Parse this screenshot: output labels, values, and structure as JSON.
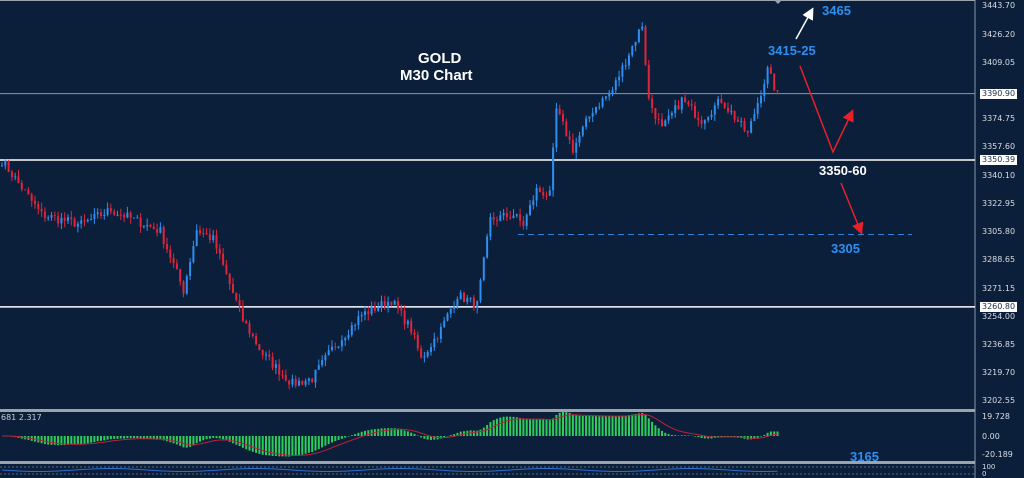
{
  "chart_data": {
    "type": "candlestick",
    "symbol": "GOLD",
    "timeframe": "M30 Chart",
    "price_waypoints": {
      "candle_index": [
        0,
        12,
        24,
        33,
        48,
        55,
        59,
        64,
        73,
        79,
        88,
        94,
        100,
        109,
        118,
        124,
        127,
        133,
        138,
        144,
        148,
        155,
        158,
        162,
        166,
        168,
        173,
        179,
        185,
        189,
        194,
        196,
        200,
        206,
        212,
        218,
        226,
        232,
        235
      ],
      "price": [
        3350,
        3317,
        3311,
        3320,
        3307,
        3271,
        3308,
        3302,
        3253,
        3232,
        3214,
        3217,
        3235,
        3256,
        3265,
        3247,
        3229,
        3247,
        3268,
        3262,
        3314,
        3317,
        3311,
        3332,
        3329,
        3381,
        3357,
        3381,
        3393,
        3411,
        3433,
        3387,
        3369,
        3387,
        3375,
        3387,
        3366,
        3405,
        3390
      ]
    },
    "price_axis_ticks": [
      "3443.70",
      "3426.20",
      "3409.05",
      "3374.75",
      "3357.60",
      "3340.10",
      "3322.95",
      "3305.80",
      "3288.65",
      "3271.15",
      "3254.00",
      "3236.85",
      "3219.70",
      "3202.55"
    ],
    "price_axis_ticks_values": [
      3443.7,
      3426.2,
      3409.05,
      3374.75,
      3357.6,
      3340.1,
      3322.95,
      3305.8,
      3288.65,
      3271.15,
      3254.0,
      3236.85,
      3219.7,
      3202.55
    ],
    "horizontal_levels": [
      {
        "label": "3390.90",
        "value": 3390.9,
        "color": "#8a97a8"
      },
      {
        "label": "3350.39",
        "value": 3350.39,
        "color": "#ffffff"
      },
      {
        "label": "3260.80",
        "value": 3260.8,
        "color": "#ffffff"
      }
    ],
    "dashed_level": {
      "value": 3305,
      "color": "#2e7fd6"
    },
    "macd": {
      "header": "681 2.317",
      "ticks": [
        "19.728",
        "0.00",
        "-20.189"
      ]
    },
    "lower_pane": {
      "ticks": [
        "100",
        "0"
      ]
    },
    "annotations": [
      {
        "text": "GOLD",
        "color": "#ffffff"
      },
      {
        "text": "M30 Chart",
        "color": "#ffffff"
      },
      {
        "text": "3465",
        "color": "#2e8ff0"
      },
      {
        "text": "3415-25",
        "color": "#2e8ff0"
      },
      {
        "text": "3350-60",
        "color": "#ffffff"
      },
      {
        "text": "3305",
        "color": "#2e8ff0"
      },
      {
        "text": "3165",
        "color": "#2e8ff0"
      }
    ],
    "colors": {
      "background": "#0b1f3a",
      "bull": "#2e8ff0",
      "bear": "#e0243a",
      "macd_hist": "#2ecc5a",
      "macd_signal": "#c0203a",
      "arrow_red": "#e8202a",
      "arrow_white": "#ffffff"
    }
  }
}
